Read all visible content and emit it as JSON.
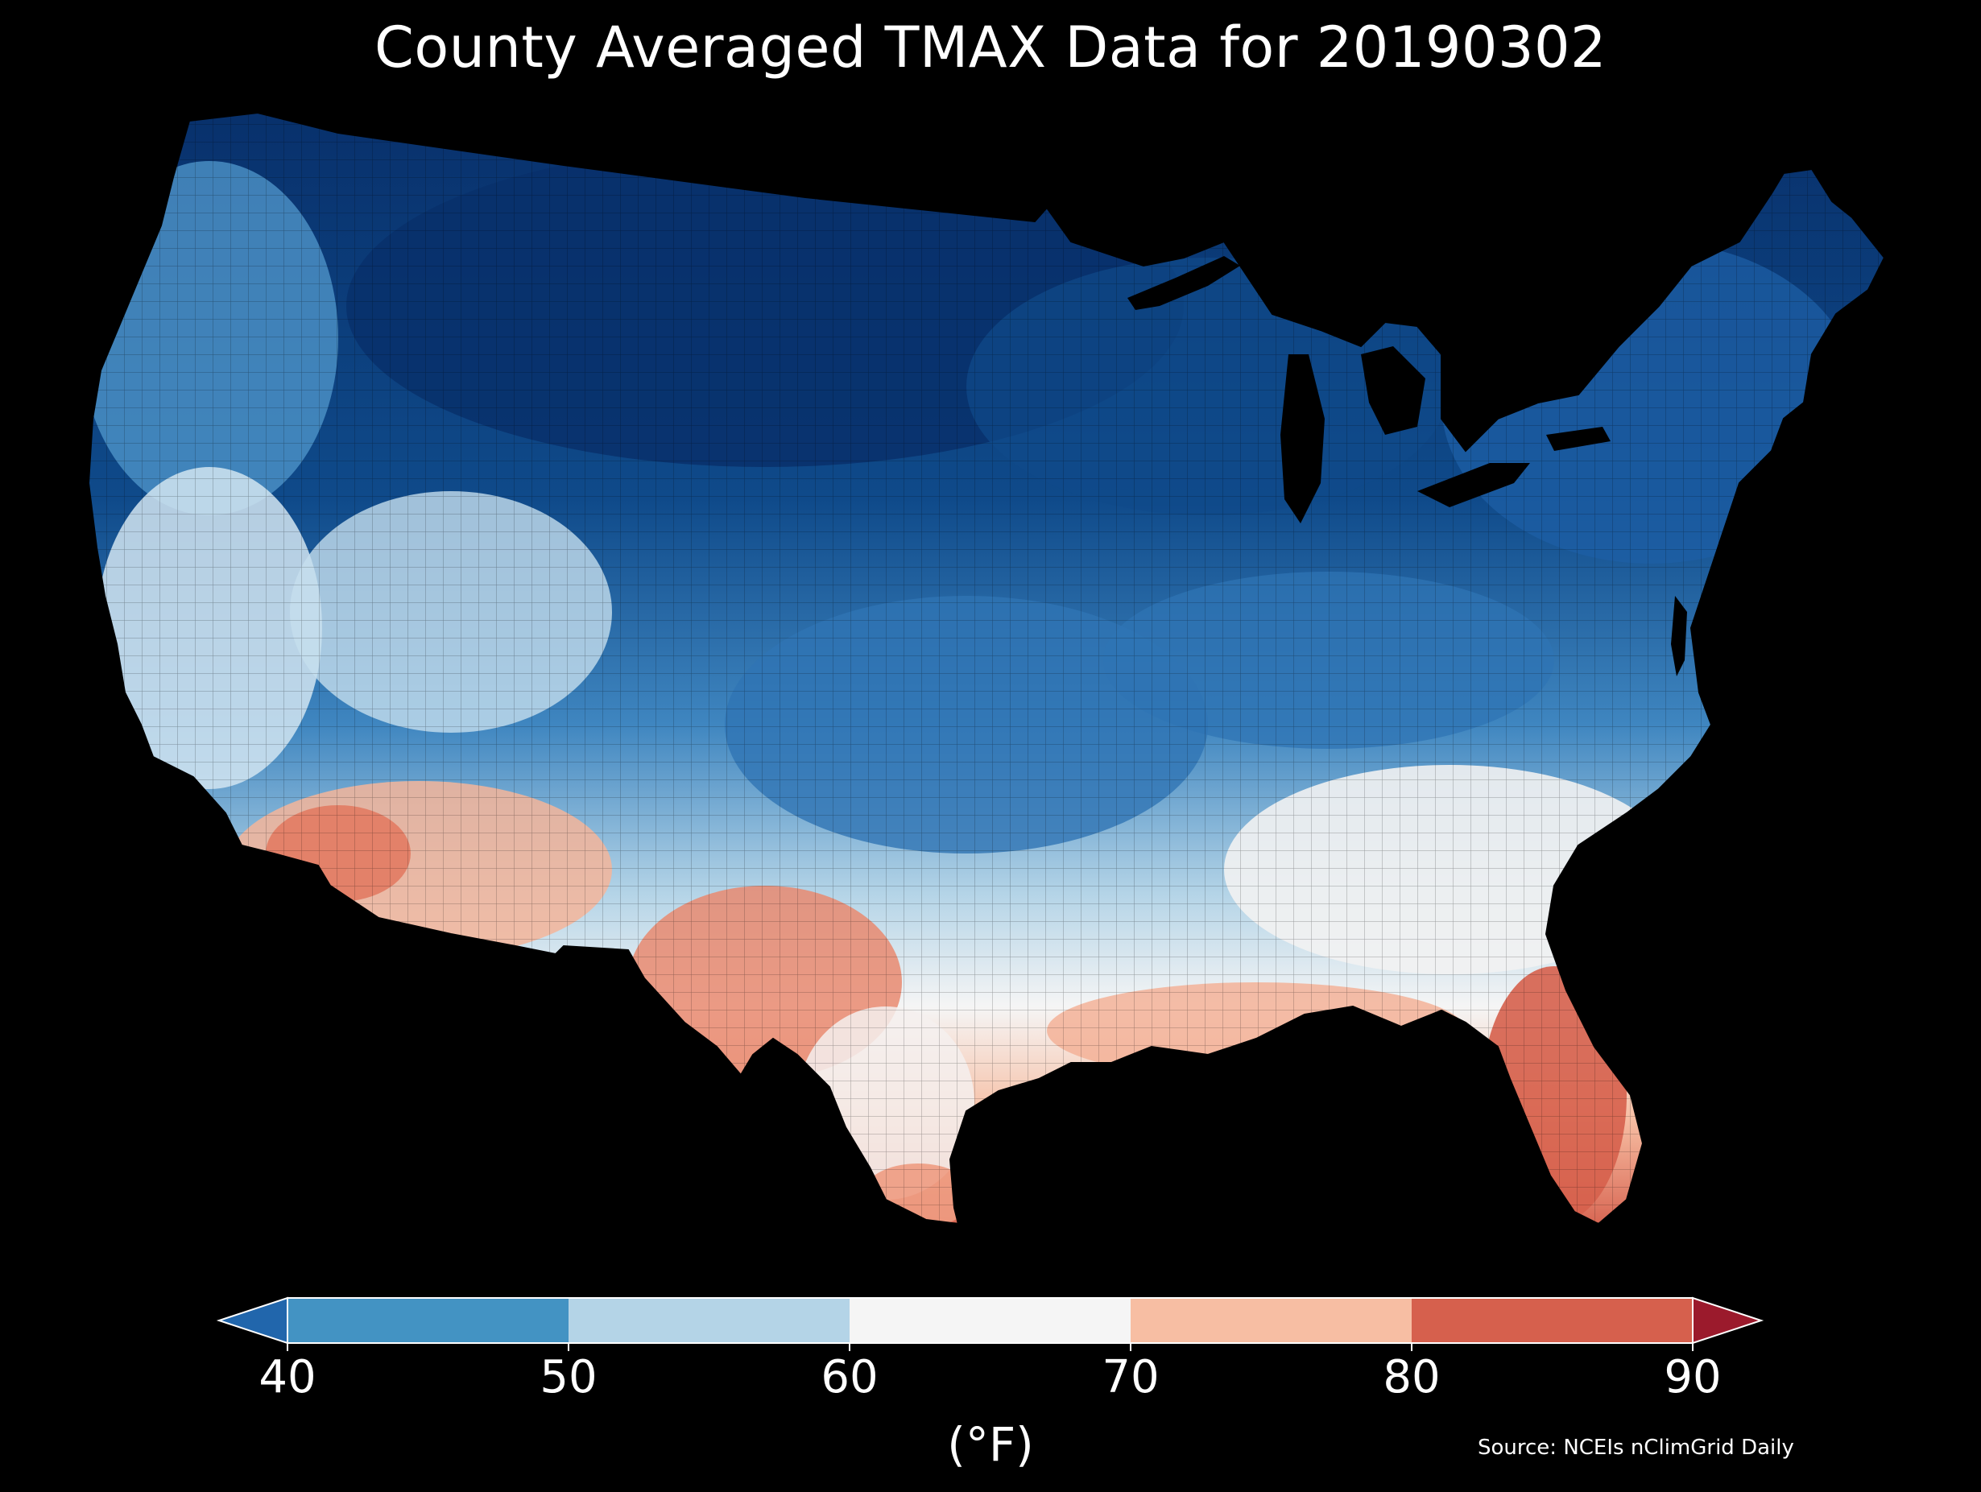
{
  "title": "County Averaged TMAX Data for 20190302",
  "colorbar": {
    "ticks": [
      "40",
      "50",
      "60",
      "70",
      "80",
      "90"
    ],
    "unit": "(°F)",
    "bins": [
      {
        "range": "<40",
        "color": "#2166ac"
      },
      {
        "range": "40-50",
        "color": "#4393c3"
      },
      {
        "range": "50-60",
        "color": "#b4d4e7"
      },
      {
        "range": "60-70",
        "color": "#f5f5f5"
      },
      {
        "range": "70-80",
        "color": "#f7bea3"
      },
      {
        "range": "80-90",
        "color": "#d6604d"
      },
      {
        "range": ">90",
        "color": "#9b1a2c"
      }
    ]
  },
  "source": "Source: NCEIs nClimGrid Daily",
  "legend_colors": {
    "very_cold": "#08306b",
    "cold": "#0f4a8a",
    "cool": "#2166ac",
    "mild_cool": "#4393c3",
    "mild": "#b4d4e7",
    "neutral": "#f5f5f5",
    "warm": "#f7bea3",
    "hot": "#d6604d"
  }
}
